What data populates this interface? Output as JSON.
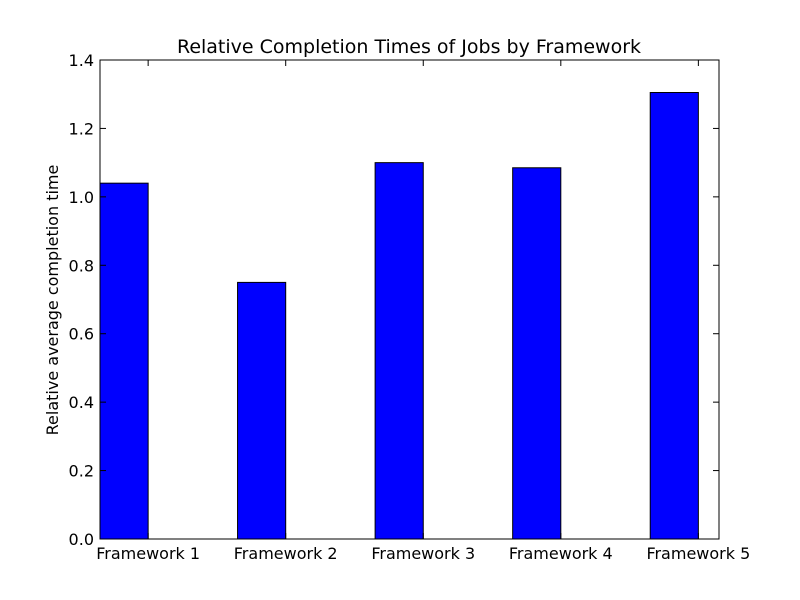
{
  "chart_data": {
    "type": "bar",
    "title": "Relative Completion Times of Jobs by Framework",
    "xlabel": "",
    "ylabel": "Relative average completion time",
    "categories": [
      "Framework 1",
      "Framework 2",
      "Framework 3",
      "Framework 4",
      "Framework 5"
    ],
    "values": [
      1.04,
      0.75,
      1.1,
      1.085,
      1.305
    ],
    "ylim": [
      0.0,
      1.4
    ],
    "yticks": [
      "0.0",
      "0.2",
      "0.4",
      "0.6",
      "0.8",
      "1.0",
      "1.2",
      "1.4"
    ],
    "bar_color": "#0000ff",
    "edge_color": "#000000",
    "grid": false,
    "legend": "none"
  }
}
